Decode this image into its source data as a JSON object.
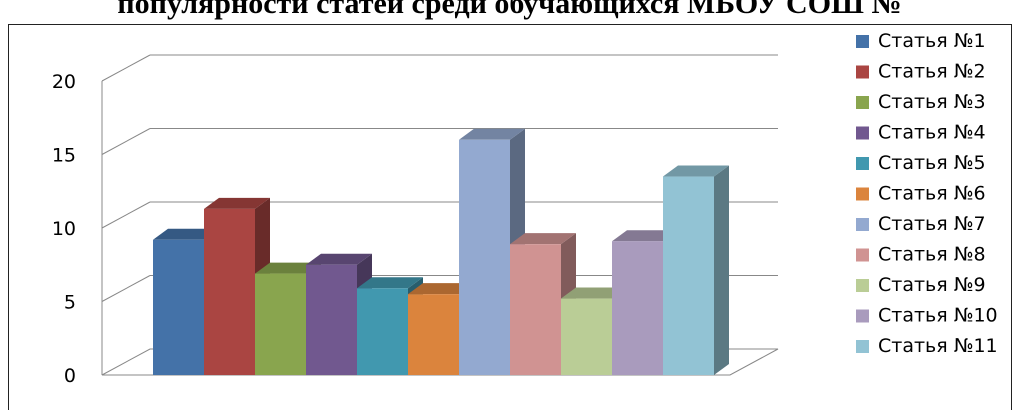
{
  "chart_data": {
    "type": "bar",
    "title": "популярности статей среди обучающихся МБОУ СОШ №",
    "categories": [
      "Статья №1",
      "Статья №2",
      "Статья №3",
      "Статья №4",
      "Статья №5",
      "Статья №6",
      "Статья №7",
      "Статья №8",
      "Статья №9",
      "Статья №10",
      "Статья №11"
    ],
    "values": [
      9.2,
      11.3,
      6.9,
      7.5,
      5.9,
      5.5,
      16.0,
      8.9,
      5.2,
      9.1,
      13.5
    ],
    "colors": [
      "#4472a8",
      "#aa4542",
      "#89a54e",
      "#71588f",
      "#4198af",
      "#db843d",
      "#93a9d0",
      "#d09392",
      "#bacd96",
      "#a99bbd",
      "#92c3d4"
    ],
    "yticks": [
      "0",
      "5",
      "10",
      "15",
      "20"
    ],
    "ylim": [
      0,
      20
    ],
    "grid": true,
    "legend_position": "right",
    "chart_style": "3d-bar"
  }
}
